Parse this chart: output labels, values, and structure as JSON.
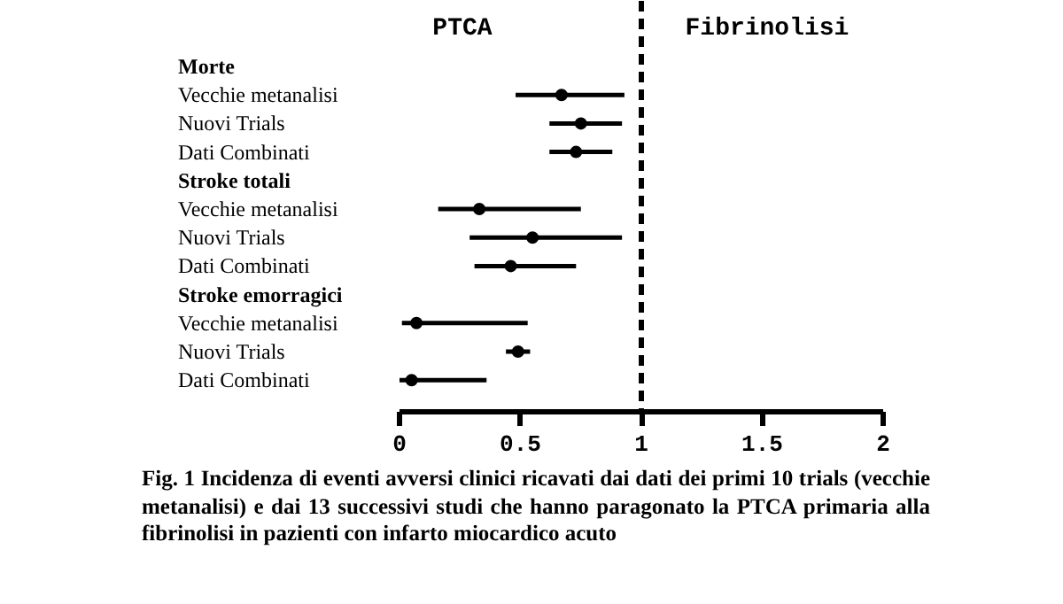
{
  "chart_data": {
    "type": "scatter",
    "orientation": "horizontal",
    "categories": [
      "Morte",
      "Vecchie metanalisi",
      "Nuovi Trials",
      "Dati Combinati",
      "Stroke totali",
      "Vecchie metanalisi",
      "Nuovi Trials",
      "Dati Combinati",
      "Stroke emorragici",
      "Vecchie metanalisi",
      "Nuovi Trials",
      "Dati Combinati"
    ],
    "values": [
      null,
      0.67,
      0.75,
      0.73,
      null,
      0.33,
      0.55,
      0.46,
      null,
      0.07,
      0.49,
      0.05
    ],
    "errors": [
      null,
      [
        0.48,
        0.93
      ],
      [
        0.62,
        0.92
      ],
      [
        0.62,
        0.88
      ],
      null,
      [
        0.16,
        0.75
      ],
      [
        0.29,
        0.92
      ],
      [
        0.31,
        0.73
      ],
      null,
      [
        0.01,
        0.53
      ],
      [
        0.44,
        0.54
      ],
      [
        0.0,
        0.36
      ]
    ],
    "color": "#000000",
    "marker": "circle",
    "grid": false,
    "xlim": [
      0,
      2
    ],
    "xticks": [
      0,
      0.5,
      1,
      1.5,
      2
    ],
    "ref_lines": [
      {
        "axis": "x",
        "value": 1,
        "line_style": "dashed",
        "color": "#000000"
      }
    ],
    "annotations": [
      "PTCA",
      "Fibrinolisi",
      "Fig. 1 Incidenza di eventi avversi clinici ricavati dai dati dei primi 10 trials (vecchie metanalisi) e dai 13 successivi studi che hanno paragonato la PTCA primaria alla fibrinolisi in pazienti con infarto miocardico acuto"
    ]
  }
}
